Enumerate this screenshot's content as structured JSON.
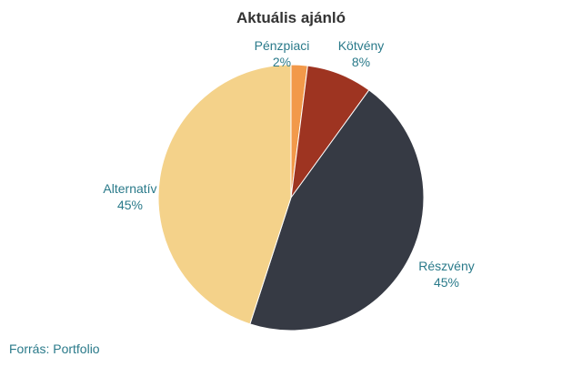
{
  "chart_data": {
    "type": "pie",
    "title": "Aktuális ajánló",
    "slices": [
      {
        "label": "Pénzpiaci",
        "value": 2,
        "display": "2%",
        "color": "#f2994a"
      },
      {
        "label": "Kötvény",
        "value": 8,
        "display": "8%",
        "color": "#9e3421"
      },
      {
        "label": "Részvény",
        "value": 45,
        "display": "45%",
        "color": "#363a44"
      },
      {
        "label": "Alternatív",
        "value": 45,
        "display": "45%",
        "color": "#f4d28a"
      }
    ],
    "source": "Forrás: Portfolio"
  }
}
